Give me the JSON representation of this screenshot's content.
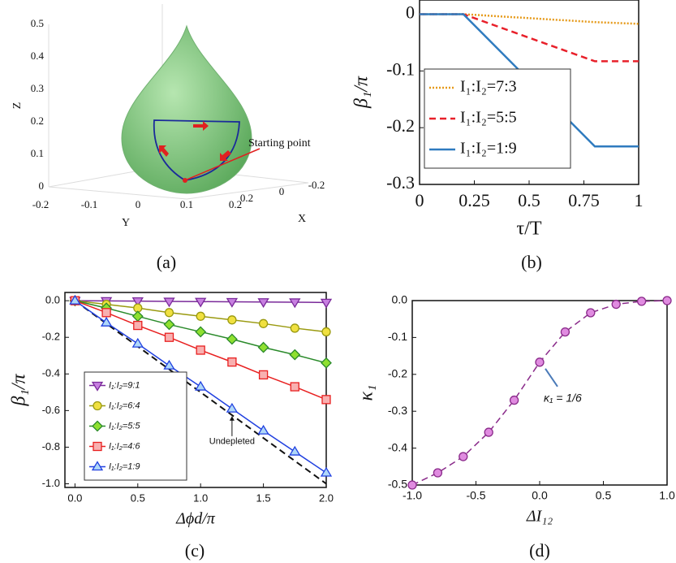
{
  "chart_data": [
    {
      "type": "surface3d",
      "panel_label": "(a)",
      "xlabel": "X",
      "ylabel": "Y",
      "zlabel": "Z",
      "zticks": [
        0,
        0.1,
        0.2,
        0.3,
        0.4,
        0.5
      ],
      "yticks": [
        -0.2,
        -0.1,
        0,
        0.1,
        0.2
      ],
      "xticks": [
        0.2,
        0,
        -0.2
      ],
      "annotation": "Starting point",
      "color": "#7cc47c"
    },
    {
      "type": "line",
      "panel_label": "(b)",
      "xlabel": "τ/T",
      "ylabel": "β₁/π",
      "x": [
        0,
        0.2,
        0.8,
        1
      ],
      "series": [
        {
          "name": "I₁:I₂=7:3",
          "color": "#e69a1a",
          "dash": "dotted",
          "values": [
            0,
            0,
            -0.014,
            -0.017
          ]
        },
        {
          "name": "I₁:I₂=5:5",
          "color": "#e8202a",
          "dash": "dashed",
          "values": [
            0,
            0,
            -0.083,
            -0.083
          ]
        },
        {
          "name": "I₁:I₂=1:9",
          "color": "#2f7bbf",
          "dash": "solid",
          "values": [
            0,
            0,
            -0.233,
            -0.233
          ]
        }
      ],
      "xlim": [
        0,
        1
      ],
      "ylim": [
        -0.3,
        0.025
      ],
      "xticks": [
        0,
        0.25,
        0.5,
        0.75,
        1
      ],
      "yticks": [
        0,
        -0.1,
        -0.2,
        -0.3
      ],
      "legend": "lower left"
    },
    {
      "type": "line",
      "panel_label": "(c)",
      "xlabel": "Δϕd/π",
      "ylabel": "β₁/π",
      "x": [
        0,
        0.25,
        0.5,
        0.75,
        1.0,
        1.25,
        1.5,
        1.75,
        2.0
      ],
      "series": [
        {
          "name": "I₁:I₂=9:1",
          "color": "#7a2a9a",
          "marker": "tri-down",
          "marker_fill": "#c77fe0",
          "values": [
            0,
            -0.001,
            -0.002,
            -0.004,
            -0.005,
            -0.006,
            -0.007,
            -0.008,
            -0.01
          ]
        },
        {
          "name": "I₁:I₂=6:4",
          "color": "#9a9a10",
          "marker": "circle",
          "marker_fill": "#f0e040",
          "values": [
            0,
            -0.02,
            -0.04,
            -0.065,
            -0.085,
            -0.105,
            -0.125,
            -0.15,
            -0.17
          ]
        },
        {
          "name": "I₁:I₂=5:5",
          "color": "#2a8a2a",
          "marker": "diamond",
          "marker_fill": "#8fe030",
          "values": [
            0,
            -0.04,
            -0.085,
            -0.13,
            -0.17,
            -0.21,
            -0.255,
            -0.295,
            -0.34
          ]
        },
        {
          "name": "I₁:I₂=4:6",
          "color": "#e82020",
          "marker": "square",
          "marker_fill": "#f8b0b0",
          "values": [
            0,
            -0.065,
            -0.135,
            -0.2,
            -0.27,
            -0.335,
            -0.405,
            -0.47,
            -0.54
          ]
        },
        {
          "name": "I₁:I₂=1:9",
          "color": "#2040e0",
          "marker": "tri-up",
          "marker_fill": "#b0d8f8",
          "values": [
            0,
            -0.12,
            -0.235,
            -0.355,
            -0.47,
            -0.59,
            -0.71,
            -0.825,
            -0.94
          ]
        }
      ],
      "reference": {
        "label": "Undepleted",
        "x": [
          0,
          2.0
        ],
        "values": [
          0,
          -1.0
        ]
      },
      "xlim": [
        -0.08,
        2.0
      ],
      "ylim": [
        -1.02,
        0.045
      ],
      "xticks": [
        {
          "value": 0,
          "label": "0.0"
        },
        0.5,
        {
          "value": 1,
          "label": "1.0"
        },
        1.5,
        {
          "value": 2,
          "label": "2.0"
        }
      ],
      "yticks": [
        {
          "value": 0,
          "label": "0.0"
        },
        -0.2,
        -0.4,
        -0.6,
        -0.8,
        {
          "value": -1,
          "label": "-1.0"
        }
      ],
      "legend": "lower left"
    },
    {
      "type": "line",
      "panel_label": "(d)",
      "xlabel": "ΔI₁₂",
      "ylabel": "κ₁",
      "annotation": "κ₁ = 1/6",
      "x": [
        -1.0,
        -0.8,
        -0.6,
        -0.4,
        -0.2,
        0,
        0.2,
        0.4,
        0.6,
        0.8,
        1.0
      ],
      "series": [
        {
          "color": "#8a2a8a",
          "dash": "dashed",
          "marker": "circle",
          "marker_fill": "#e08be0",
          "values": [
            -0.5,
            -0.467,
            -0.423,
            -0.357,
            -0.27,
            -0.167,
            -0.085,
            -0.033,
            -0.01,
            -0.002,
            0
          ]
        }
      ],
      "xlim": [
        -1.0,
        1.0
      ],
      "ylim": [
        -0.5,
        0
      ],
      "xticks": [
        {
          "value": -1,
          "label": "-1.0"
        },
        -0.5,
        {
          "value": 0,
          "label": "0.0"
        },
        0.5,
        {
          "value": 1,
          "label": "1.0"
        }
      ],
      "yticks": [
        {
          "value": 0,
          "label": "0.0"
        },
        -0.1,
        -0.2,
        -0.3,
        -0.4,
        -0.5
      ]
    }
  ]
}
